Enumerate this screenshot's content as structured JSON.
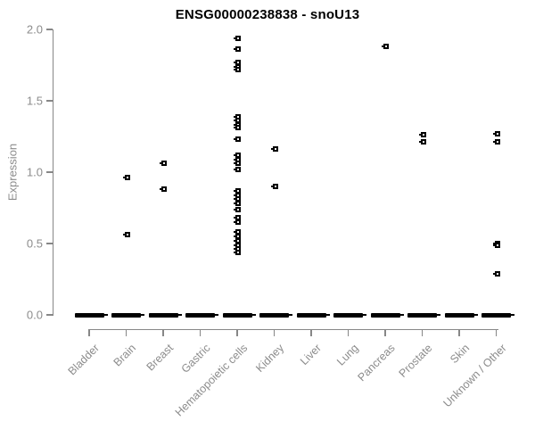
{
  "title": "ENSG00000238838 - snoU13",
  "chart_data": {
    "type": "scatter",
    "title": "ENSG00000238838 - snoU13",
    "xlabel": "",
    "ylabel": "Expression",
    "ylim": [
      0.0,
      2.0
    ],
    "yticks": [
      0.0,
      0.5,
      1.0,
      1.5,
      2.0
    ],
    "ytick_labels": [
      "0.0",
      "0.5",
      "1.0",
      "1.5",
      "2.0"
    ],
    "grid": false,
    "legend": "none",
    "marker": "open-square",
    "categories": [
      "Bladder",
      "Brain",
      "Breast",
      "Gastric",
      "Hematopoietic cells",
      "Kidney",
      "Liver",
      "Lung",
      "Pancreas",
      "Prostate",
      "Skin",
      "Unknown / Other"
    ],
    "series": [
      {
        "category": "Bladder",
        "values": [],
        "zero_cluster": true
      },
      {
        "category": "Brain",
        "values": [
          0.96,
          0.56
        ],
        "zero_cluster": true
      },
      {
        "category": "Breast",
        "values": [
          1.06,
          0.88
        ],
        "zero_cluster": true
      },
      {
        "category": "Gastric",
        "values": [],
        "zero_cluster": true
      },
      {
        "category": "Hematopoietic cells",
        "values": [
          1.94,
          1.86,
          1.77,
          1.74,
          1.72,
          1.39,
          1.36,
          1.33,
          1.31,
          1.23,
          1.12,
          1.09,
          1.06,
          1.02,
          0.87,
          0.84,
          0.81,
          0.78,
          0.74,
          0.68,
          0.65,
          0.58,
          0.55,
          0.52,
          0.49,
          0.46,
          0.44
        ],
        "zero_cluster": true
      },
      {
        "category": "Kidney",
        "values": [
          1.16,
          0.9
        ],
        "zero_cluster": true
      },
      {
        "category": "Liver",
        "values": [],
        "zero_cluster": true
      },
      {
        "category": "Lung",
        "values": [],
        "zero_cluster": true
      },
      {
        "category": "Pancreas",
        "values": [
          1.88
        ],
        "zero_cluster": true
      },
      {
        "category": "Prostate",
        "values": [
          1.26,
          1.21
        ],
        "zero_cluster": true
      },
      {
        "category": "Skin",
        "values": [],
        "zero_cluster": true
      },
      {
        "category": "Unknown / Other",
        "values": [
          1.27,
          1.21,
          0.5,
          0.49,
          0.29
        ],
        "zero_cluster": true
      }
    ],
    "colors": {
      "point": "#000000",
      "axis": "#878787",
      "axis_text": "#8c8c8c",
      "title": "#000000",
      "background": "#ffffff"
    }
  }
}
